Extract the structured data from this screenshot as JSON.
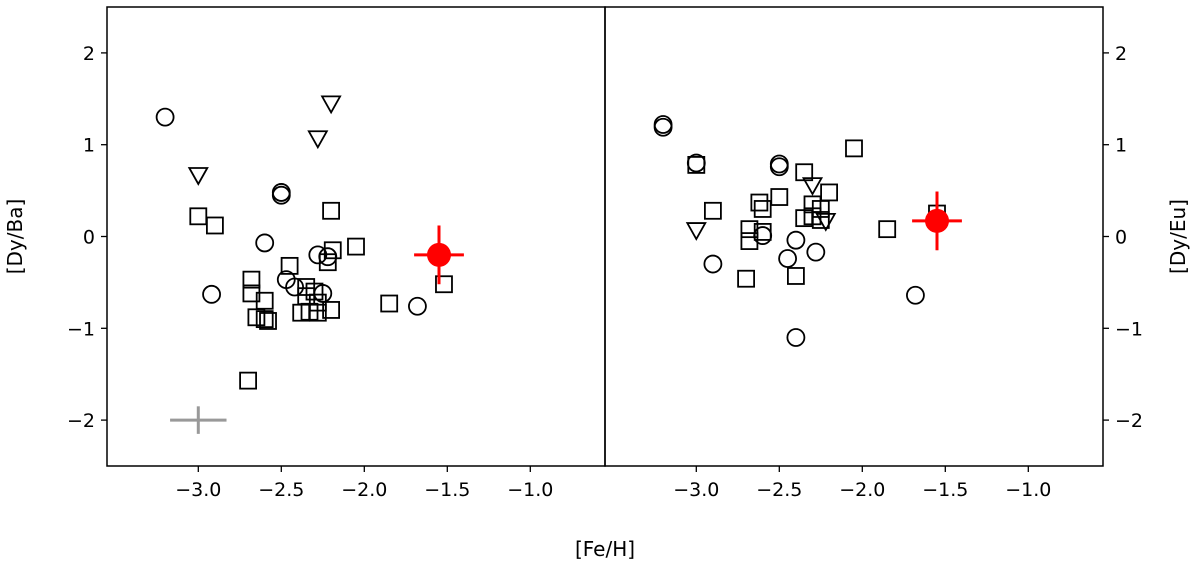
{
  "chart_data": [
    {
      "type": "scatter",
      "panel": "left",
      "xlabel": "",
      "ylabel": "[Dy/Ba]",
      "xlim": [
        -3.55,
        -0.55
      ],
      "ylim": [
        -2.5,
        2.5
      ],
      "xticks": [
        -3.0,
        -2.5,
        -2.0,
        -1.5,
        -1.0
      ],
      "xtick_labels": [
        "−3.0",
        "−2.5",
        "−2.0",
        "−1.5",
        "−1.0"
      ],
      "yticks": [
        -2,
        -1,
        0,
        1,
        2
      ],
      "ytick_labels": [
        "−2",
        "−1",
        "0",
        "1",
        "2"
      ],
      "y_axis_side": "left",
      "grid": false,
      "series": [
        {
          "marker": "square",
          "points": [
            [
              -3.0,
              0.22
            ],
            [
              -2.9,
              0.12
            ],
            [
              -2.2,
              0.28
            ],
            [
              -2.19,
              -0.15
            ],
            [
              -2.22,
              -0.28
            ],
            [
              -2.05,
              -0.11
            ],
            [
              -2.45,
              -0.32
            ],
            [
              -2.35,
              -0.55
            ],
            [
              -2.3,
              -0.6
            ],
            [
              -2.68,
              -0.47
            ],
            [
              -2.68,
              -0.62
            ],
            [
              -2.6,
              -0.7
            ],
            [
              -2.65,
              -0.88
            ],
            [
              -2.6,
              -0.9
            ],
            [
              -2.58,
              -0.92
            ],
            [
              -2.35,
              -0.65
            ],
            [
              -2.28,
              -0.72
            ],
            [
              -2.28,
              -0.83
            ],
            [
              -2.2,
              -0.8
            ],
            [
              -2.38,
              -0.83
            ],
            [
              -2.33,
              -0.82
            ],
            [
              -1.85,
              -0.73
            ],
            [
              -1.52,
              -0.52
            ],
            [
              -2.7,
              -1.57
            ]
          ]
        },
        {
          "marker": "circle",
          "points": [
            [
              -3.2,
              1.3
            ],
            [
              -2.5,
              0.48
            ],
            [
              -2.5,
              0.45
            ],
            [
              -2.6,
              -0.07
            ],
            [
              -2.28,
              -0.2
            ],
            [
              -2.22,
              -0.22
            ],
            [
              -2.47,
              -0.47
            ],
            [
              -2.42,
              -0.55
            ],
            [
              -2.25,
              -0.62
            ],
            [
              -2.92,
              -0.63
            ],
            [
              -1.68,
              -0.76
            ]
          ]
        },
        {
          "marker": "triangle-down",
          "points": [
            [
              -2.2,
              1.45
            ],
            [
              -2.28,
              1.07
            ],
            [
              -3.0,
              0.67
            ]
          ]
        },
        {
          "marker": "filled-circle-errorbar",
          "color": "#ff0000",
          "points": [
            [
              -1.55,
              -0.2
            ]
          ],
          "xerr": 0.15,
          "yerr": 0.32
        },
        {
          "marker": "errorbar-only",
          "color": "#999999",
          "points": [
            [
              -3.0,
              -2.0
            ]
          ],
          "xerr": 0.17,
          "yerr": 0.15
        }
      ]
    },
    {
      "type": "scatter",
      "panel": "right",
      "xlabel": "",
      "ylabel": "[Dy/Eu]",
      "xlim": [
        -3.55,
        -0.55
      ],
      "ylim": [
        -2.5,
        2.5
      ],
      "xticks": [
        -3.0,
        -2.5,
        -2.0,
        -1.5,
        -1.0
      ],
      "xtick_labels": [
        "−3.0",
        "−2.5",
        "−2.0",
        "−1.5",
        "−1.0"
      ],
      "yticks": [
        -2,
        -1,
        0,
        1,
        2
      ],
      "ytick_labels": [
        "−2",
        "−1",
        "0",
        "1",
        "2"
      ],
      "y_axis_side": "right",
      "grid": false,
      "series": [
        {
          "marker": "square",
          "points": [
            [
              -3.0,
              0.78
            ],
            [
              -2.9,
              0.28
            ],
            [
              -2.05,
              0.96
            ],
            [
              -2.35,
              0.7
            ],
            [
              -2.2,
              0.48
            ],
            [
              -2.3,
              0.35
            ],
            [
              -2.25,
              0.3
            ],
            [
              -2.3,
              0.22
            ],
            [
              -2.35,
              0.2
            ],
            [
              -2.25,
              0.18
            ],
            [
              -2.5,
              0.43
            ],
            [
              -2.62,
              0.37
            ],
            [
              -2.6,
              0.3
            ],
            [
              -2.68,
              0.08
            ],
            [
              -2.6,
              0.05
            ],
            [
              -2.68,
              -0.05
            ],
            [
              -2.4,
              -0.43
            ],
            [
              -2.7,
              -0.46
            ],
            [
              -1.85,
              0.08
            ],
            [
              -1.55,
              0.25
            ]
          ]
        },
        {
          "marker": "circle",
          "points": [
            [
              -3.2,
              1.22
            ],
            [
              -3.2,
              1.19
            ],
            [
              -3.0,
              0.8
            ],
            [
              -2.5,
              0.79
            ],
            [
              -2.5,
              0.76
            ],
            [
              -2.6,
              0.01
            ],
            [
              -2.4,
              -0.04
            ],
            [
              -2.45,
              -0.24
            ],
            [
              -2.28,
              -0.17
            ],
            [
              -2.9,
              -0.3
            ],
            [
              -1.68,
              -0.64
            ],
            [
              -2.4,
              -1.1
            ]
          ]
        },
        {
          "marker": "triangle-down",
          "points": [
            [
              -2.3,
              0.56
            ],
            [
              -3.0,
              0.07
            ],
            [
              -2.22,
              0.17
            ]
          ]
        },
        {
          "marker": "filled-circle-errorbar",
          "color": "#ff0000",
          "points": [
            [
              -1.55,
              0.17
            ]
          ],
          "xerr": 0.15,
          "yerr": 0.32
        }
      ]
    }
  ],
  "shared_xlabel": "[Fe/H]"
}
